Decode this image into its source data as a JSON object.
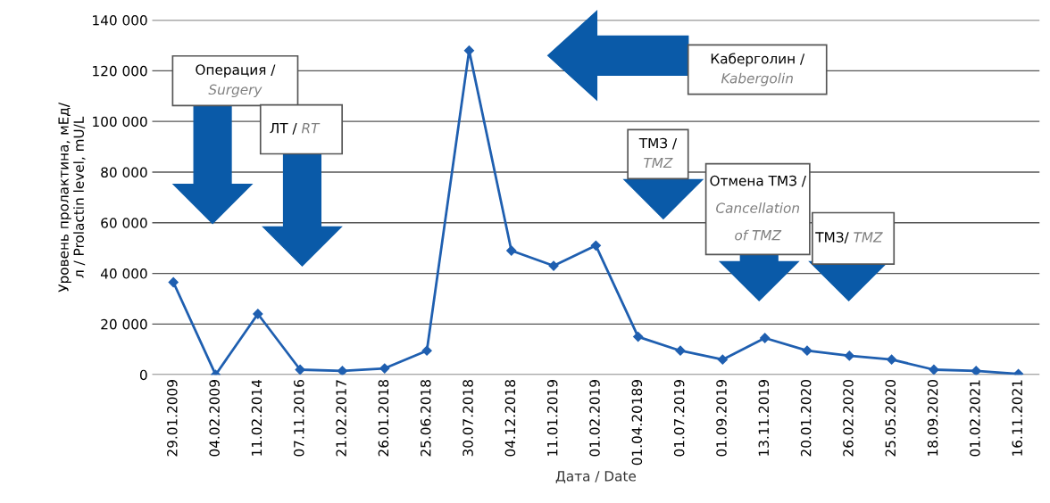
{
  "chart_data": {
    "type": "line",
    "categories": [
      "29.01.2009",
      "04.02.2009",
      "11.02.2014",
      "07.11.2016",
      "21.02.2017",
      "26.01.2018",
      "25.06.2018",
      "30.07.2018",
      "04.12.2018",
      "11.01.2019",
      "01.02.2019",
      "01.04.20189",
      "01.07.2019",
      "01.09.2019",
      "13.11.2019",
      "20.01.2020",
      "26.02.2020",
      "25.05.2020",
      "18.09.2020",
      "01.02.2021",
      "16.11.2021"
    ],
    "series": [
      {
        "color": "#1f5fb0",
        "values": [
          36500,
          0,
          24000,
          2000,
          1500,
          2500,
          9500,
          128000,
          49000,
          43000,
          51000,
          15000,
          9500,
          6000,
          14500,
          9500,
          7500,
          6000,
          2000,
          1500,
          300
        ]
      }
    ],
    "ylim": [
      0,
      140000
    ],
    "yticks": [
      {
        "value": 0,
        "label": "0"
      },
      {
        "value": 20000,
        "label": "20 000"
      },
      {
        "value": 40000,
        "label": "40 000"
      },
      {
        "value": 60000,
        "label": "60 000"
      },
      {
        "value": 80000,
        "label": "80 000"
      },
      {
        "value": 100000,
        "label": "100 000"
      },
      {
        "value": 120000,
        "label": "120 000"
      },
      {
        "value": 140000,
        "label": "140 000"
      }
    ],
    "xlabel": "Дата / Date",
    "ylabel": "Уровень пролактина, мЕд/л / Prolactin level, mU/L",
    "grid": "y",
    "marker": "diamond",
    "line_style": "solid",
    "legend": false,
    "annotations": [
      "Операция / Surgery",
      "ЛТ / RT",
      "Каберголин / Kabergolin",
      "ТМЗ / TMZ",
      "Отмена ТМЗ / Cancellation of TMZ",
      "ТМЗ/TMZ"
    ]
  }
}
